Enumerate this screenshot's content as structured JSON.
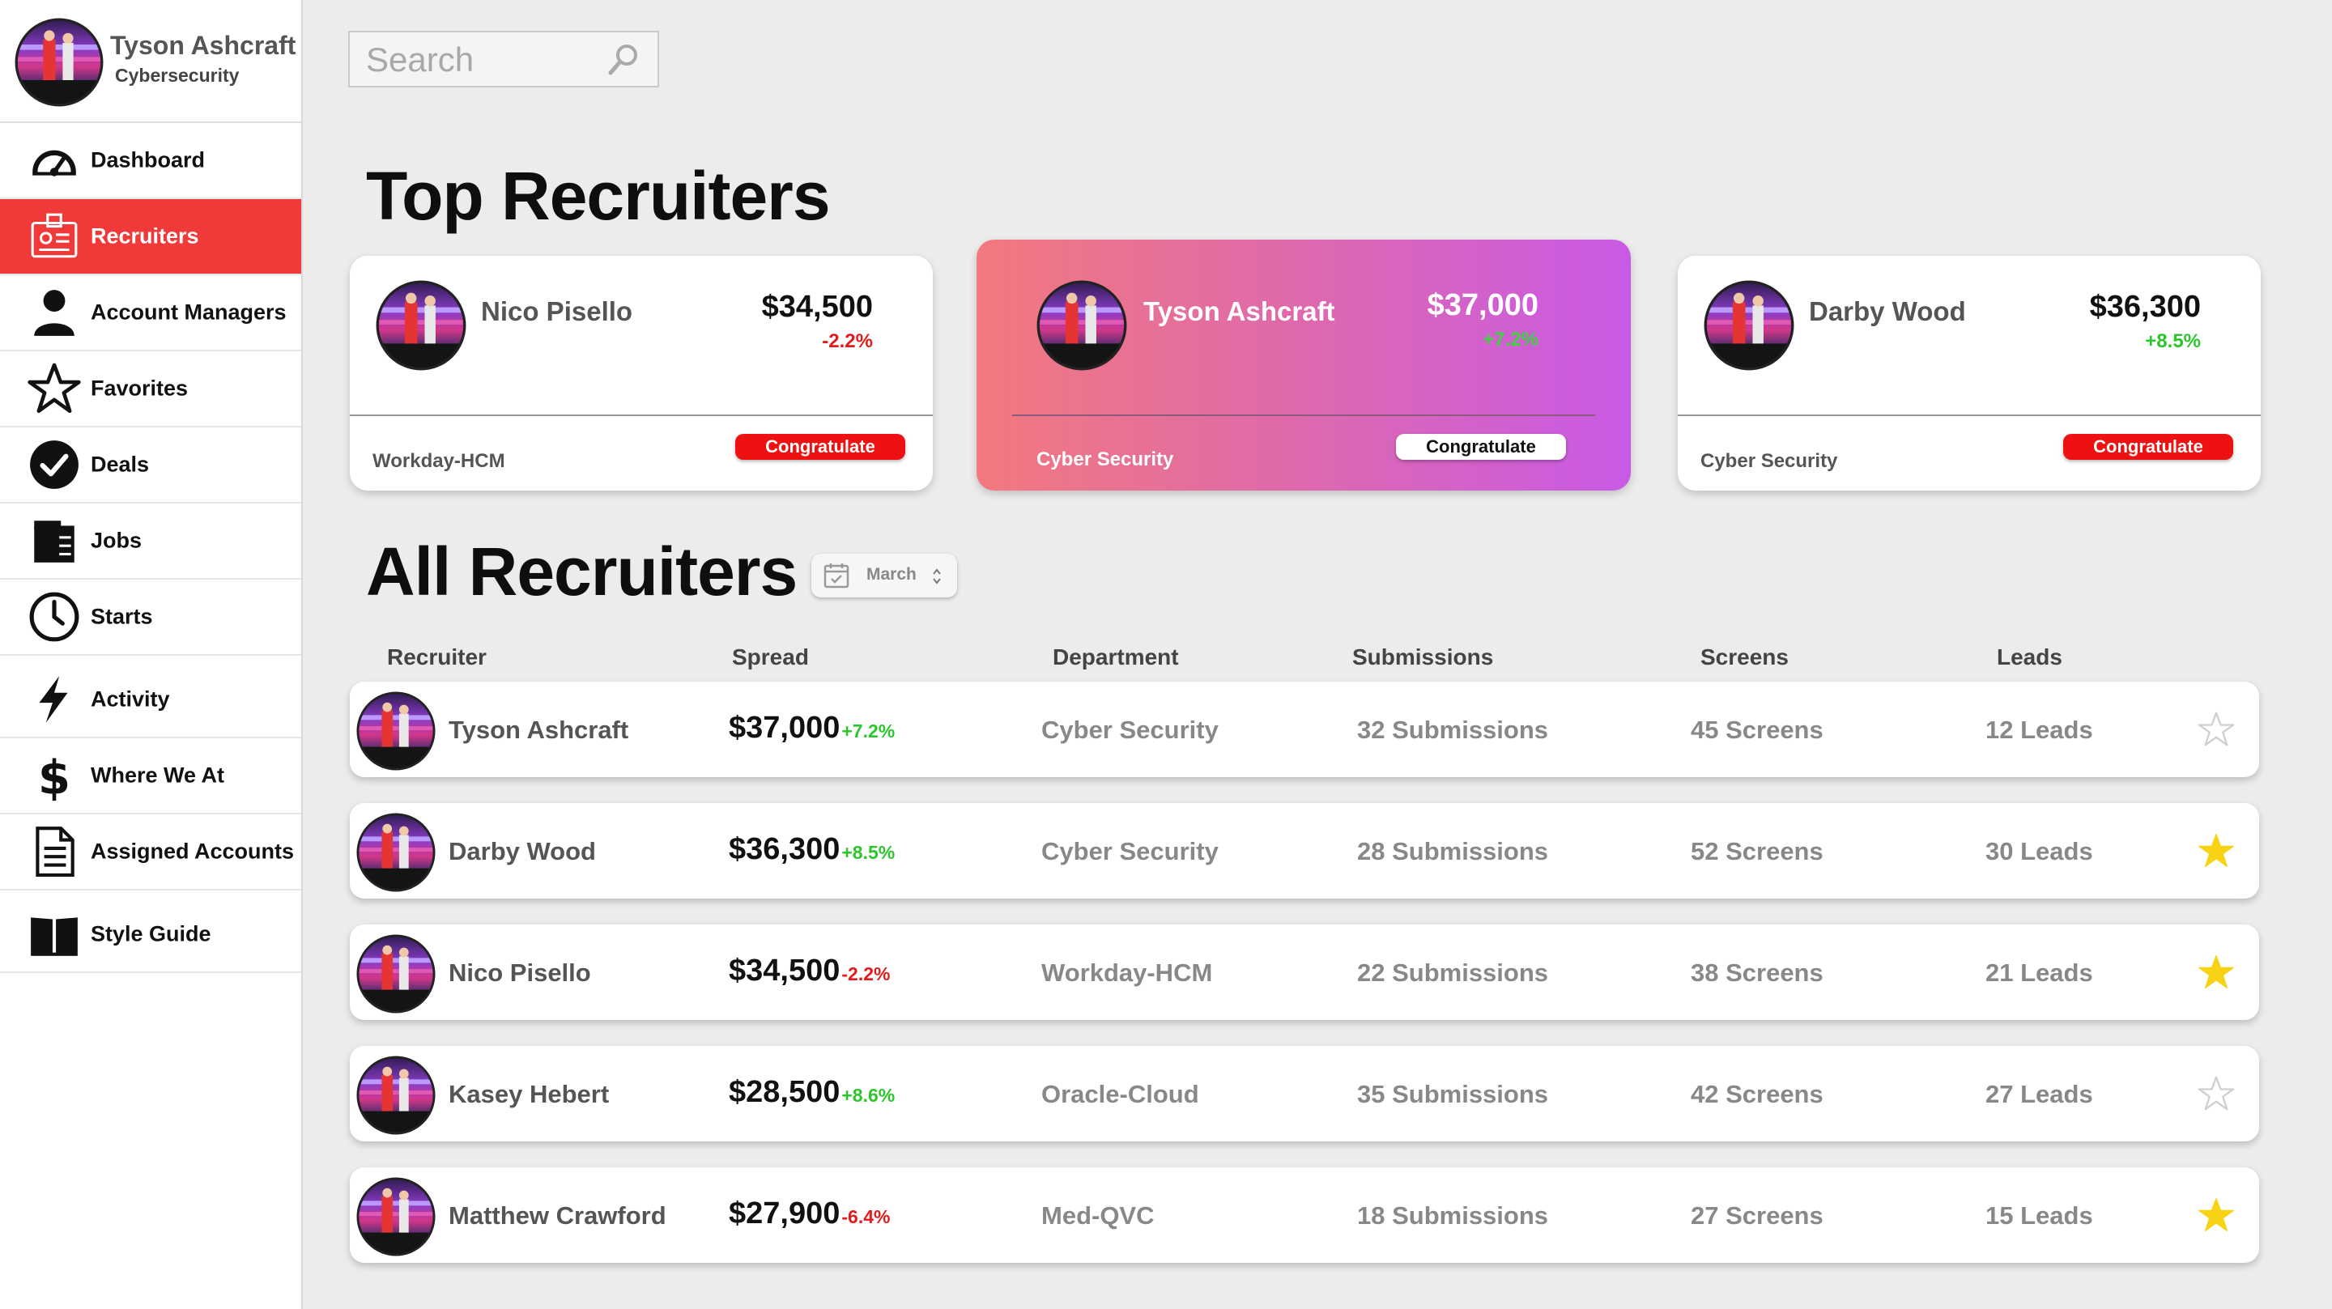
{
  "profile": {
    "name": "Tyson Ashcraft",
    "role": "Cybersecurity"
  },
  "nav": [
    {
      "label": "Dashboard",
      "icon": "speedometer-icon"
    },
    {
      "label": "Recruiters",
      "icon": "id-badge-icon",
      "active": true
    },
    {
      "label": "Account Managers",
      "icon": "person-icon"
    },
    {
      "label": "Favorites",
      "icon": "star-icon"
    },
    {
      "label": "Deals",
      "icon": "check-circle-icon"
    },
    {
      "label": "Jobs",
      "icon": "folder-icon"
    },
    {
      "label": "Starts",
      "icon": "clock-icon"
    },
    {
      "label": "Activity",
      "icon": "lightning-icon"
    },
    {
      "label": "Where We At",
      "icon": "dollar-icon"
    },
    {
      "label": "Assigned Accounts",
      "icon": "document-icon"
    },
    {
      "label": "Style Guide",
      "icon": "book-icon"
    }
  ],
  "search": {
    "placeholder": "Search",
    "value": ""
  },
  "top_section": {
    "title": "Top Recruiters"
  },
  "top_cards": [
    {
      "name": "Nico Pisello",
      "amount": "$34,500",
      "change": "-2.2%",
      "department": "Workday-HCM",
      "button": "Congratulate"
    },
    {
      "name": "Tyson Ashcraft",
      "amount": "$37,000",
      "change": "+7.2%",
      "department": "Cyber Security",
      "button": "Congratulate"
    },
    {
      "name": "Darby Wood",
      "amount": "$36,300",
      "change": "+8.5%",
      "department": "Cyber Security",
      "button": "Congratulate"
    }
  ],
  "all_section": {
    "title": "All Recruiters",
    "month": "March"
  },
  "table": {
    "headers": {
      "recruiter": "Recruiter",
      "spread": "Spread",
      "department": "Department",
      "submissions": "Submissions",
      "screens": "Screens",
      "leads": "Leads"
    },
    "rows": [
      {
        "name": "Tyson Ashcraft",
        "spread": "$37,000",
        "change": "+7.2%",
        "department": "Cyber Security",
        "submissions": "32 Submissions",
        "screens": "45 Screens",
        "leads": "12 Leads",
        "favorite": false
      },
      {
        "name": "Darby Wood",
        "spread": "$36,300",
        "change": "+8.5%",
        "department": "Cyber Security",
        "submissions": "28 Submissions",
        "screens": "52 Screens",
        "leads": "30 Leads",
        "favorite": true
      },
      {
        "name": "Nico Pisello",
        "spread": "$34,500",
        "change": "-2.2%",
        "department": "Workday-HCM",
        "submissions": "22 Submissions",
        "screens": "38 Screens",
        "leads": "21 Leads",
        "favorite": true
      },
      {
        "name": "Kasey Hebert",
        "spread": "$28,500",
        "change": "+8.6%",
        "department": "Oracle-Cloud",
        "submissions": "35 Submissions",
        "screens": "42 Screens",
        "leads": "27 Leads",
        "favorite": false
      },
      {
        "name": "Matthew Crawford",
        "spread": "$27,900",
        "change": "-6.4%",
        "department": "Med-QVC",
        "submissions": "18 Submissions",
        "screens": "27 Screens",
        "leads": "15 Leads",
        "favorite": true
      }
    ]
  },
  "colors": {
    "accent_red": "#f03a3a",
    "button_red": "#ee1111",
    "positive": "#2bc62b",
    "negative": "#e21b1b",
    "star_fill": "#f7d215",
    "featured_gradient_start": "#f2797e",
    "featured_gradient_end": "#c85ae6"
  }
}
